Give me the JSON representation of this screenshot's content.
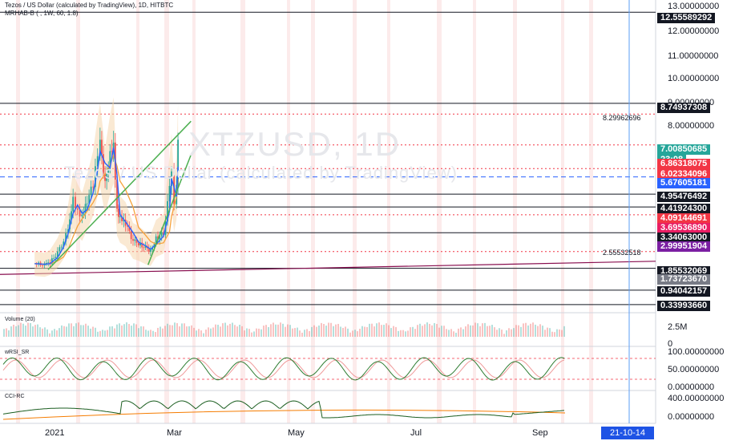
{
  "header": {
    "line1": "Tezos / US Dollar (calculated by TradingView), 1D, HITBTC",
    "line2": "MRHAB-B ( , 1W, 60, 1.8)"
  },
  "watermark": {
    "symbol": "XTZUSD, 1D",
    "name": "Tezos / US Dollar (calculated by TradingView)"
  },
  "panes": {
    "volume": "Volume (20)",
    "rsi": "wRSI_SR",
    "cci": "CCI-RC"
  },
  "price_axis": {
    "ticks": [
      "13.00000000",
      "12.00000000",
      "11.00000000",
      "10.00000000",
      "9.00000000",
      "8.00000000"
    ]
  },
  "price_tags": [
    {
      "label": "12.55589292",
      "bg": "#131722",
      "fg": "#ffffff"
    },
    {
      "label": "8.74937308",
      "bg": "#131722",
      "fg": "#ffffff"
    },
    {
      "label": "7.00850685",
      "bg": "#26a69a",
      "fg": "#ffffff"
    },
    {
      "label": "23:08",
      "bg": "#26a69a",
      "fg": "#ffffff"
    },
    {
      "label": "6.86318075",
      "bg": "#f23645",
      "fg": "#ffffff"
    },
    {
      "label": "6.02334096",
      "bg": "#f23645",
      "fg": "#ffffff"
    },
    {
      "label": "5.67605181",
      "bg": "#2962ff",
      "fg": "#ffffff"
    },
    {
      "label": "4.95476492",
      "bg": "#131722",
      "fg": "#ffffff"
    },
    {
      "label": "4.41924300",
      "bg": "#131722",
      "fg": "#ffffff"
    },
    {
      "label": "4.09144691",
      "bg": "#f23645",
      "fg": "#ffffff"
    },
    {
      "label": "3.69536890",
      "bg": "#e91e63",
      "fg": "#ffffff"
    },
    {
      "label": "3.34063000",
      "bg": "#131722",
      "fg": "#ffffff"
    },
    {
      "label": "2.99951904",
      "bg": "#7b1fa2",
      "fg": "#ffffff"
    },
    {
      "label": "1.85532069",
      "bg": "#131722",
      "fg": "#ffffff"
    },
    {
      "label": "1.73723670",
      "bg": "#787b86",
      "fg": "#ffffff"
    },
    {
      "label": "0.94042157",
      "bg": "#131722",
      "fg": "#ffffff"
    },
    {
      "label": "0.33993660",
      "bg": "#131722",
      "fg": "#ffffff"
    }
  ],
  "level_labels": {
    "upper": "8.29962696",
    "lower": "2.55532518"
  },
  "volume_axis": {
    "ticks": [
      "2.5M",
      "0"
    ]
  },
  "rsi_axis": {
    "ticks": [
      "100.00000000",
      "50.00000000",
      "0.00000000"
    ]
  },
  "cci_axis": {
    "ticks": [
      "400.00000000",
      "0.00000000"
    ]
  },
  "x_axis": {
    "ticks": [
      "2021",
      "Mar",
      "May",
      "Jul",
      "Sep"
    ],
    "cursor_label": "21-10-14"
  },
  "colors": {
    "bull": "#26a69a",
    "bear": "#ef5350",
    "trendline": "#4caf50",
    "ema": "#2962ff",
    "sma": "#f7a23b",
    "cloud": "#f5d3a8",
    "cursor": "#5b9cf6"
  },
  "chart_data": {
    "type": "candlestick",
    "symbol": "XTZUSD",
    "timeframe": "1D",
    "exchange": "HITBTC",
    "x_range": [
      "2021-01-01",
      "2021-10-14"
    ],
    "ylim": [
      0,
      13
    ],
    "price_close": [
      {
        "date": "2020-12-05",
        "close": 2.05
      },
      {
        "date": "2020-12-25",
        "close": 2.0
      },
      {
        "date": "2021-01-05",
        "close": 2.1
      },
      {
        "date": "2021-01-20",
        "close": 2.5
      },
      {
        "date": "2021-02-01",
        "close": 3.0
      },
      {
        "date": "2021-02-10",
        "close": 3.6
      },
      {
        "date": "2021-02-20",
        "close": 4.7
      },
      {
        "date": "2021-03-01",
        "close": 4.3
      },
      {
        "date": "2021-03-10",
        "close": 4.0
      },
      {
        "date": "2021-03-20",
        "close": 4.6
      },
      {
        "date": "2021-04-01",
        "close": 5.4
      },
      {
        "date": "2021-04-10",
        "close": 6.5
      },
      {
        "date": "2021-04-15",
        "close": 7.0
      },
      {
        "date": "2021-04-25",
        "close": 5.5
      },
      {
        "date": "2021-05-05",
        "close": 6.6
      },
      {
        "date": "2021-05-12",
        "close": 7.2
      },
      {
        "date": "2021-05-19",
        "close": 4.3
      },
      {
        "date": "2021-05-25",
        "close": 3.9
      },
      {
        "date": "2021-06-05",
        "close": 3.7
      },
      {
        "date": "2021-06-20",
        "close": 3.0
      },
      {
        "date": "2021-07-01",
        "close": 2.9
      },
      {
        "date": "2021-07-15",
        "close": 2.7
      },
      {
        "date": "2021-07-25",
        "close": 2.6
      },
      {
        "date": "2021-08-05",
        "close": 3.1
      },
      {
        "date": "2021-08-20",
        "close": 3.3
      },
      {
        "date": "2021-09-01",
        "close": 5.2
      },
      {
        "date": "2021-09-05",
        "close": 6.0
      },
      {
        "date": "2021-09-10",
        "close": 4.5
      },
      {
        "date": "2021-09-15",
        "close": 5.2
      },
      {
        "date": "2021-09-18",
        "close": 7.0
      }
    ],
    "price_levels": [
      12.55589292,
      8.74937308,
      8.29962696,
      7.00850685,
      6.86318075,
      6.02334096,
      5.67605181,
      4.95476492,
      4.419243,
      4.09144691,
      3.6953689,
      3.34063,
      2.99951904,
      2.55532518,
      1.85532069,
      1.7372367,
      0.94042157,
      0.3399366
    ],
    "last_price": 7.00850685,
    "countdown": "23:08",
    "trendlines": [
      {
        "from": {
          "date": "2021-01-01",
          "price": 1.8
        },
        "to": {
          "date": "2021-10-14",
          "price": 8.0
        }
      },
      {
        "from": {
          "date": "2021-07-20",
          "price": 2.0
        },
        "to": {
          "date": "2021-10-14",
          "price": 6.6
        }
      }
    ],
    "volume": {
      "ylim": [
        0,
        2.5
      ],
      "unit": "M"
    },
    "rsi": {
      "ylim": [
        0,
        100
      ]
    },
    "cci": {
      "ylim": [
        0,
        400
      ]
    }
  }
}
